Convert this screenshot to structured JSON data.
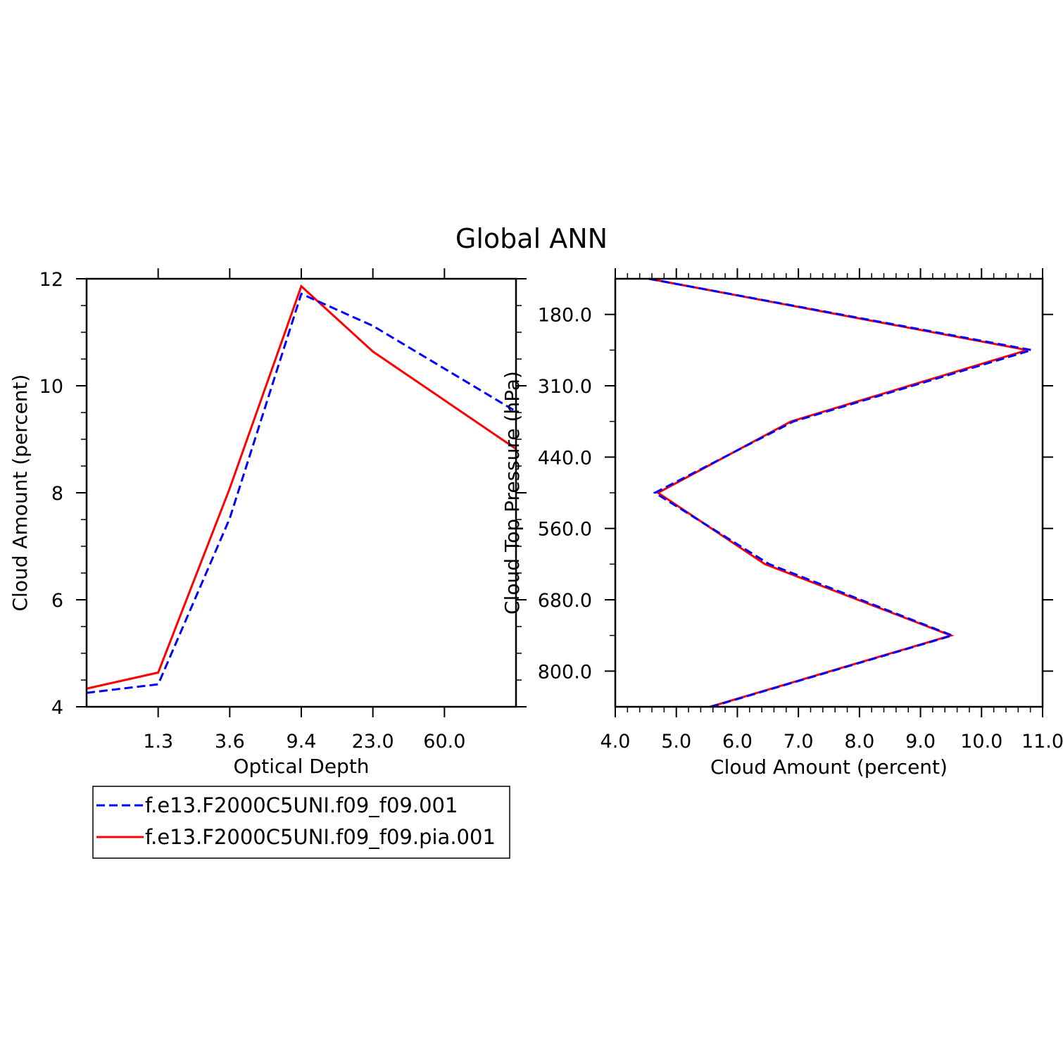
{
  "title": "Global ANN",
  "colors": {
    "series_1": "#0000ff",
    "series_2": "#ff0000",
    "axis": "#000000"
  },
  "legend": {
    "items": [
      {
        "label": "f.e13.F2000C5UNI.f09_f09.001",
        "color": "#0000ff",
        "style": "dashed"
      },
      {
        "label": "f.e13.F2000C5UNI.f09_f09.pia.001",
        "color": "#ff0000",
        "style": "solid"
      }
    ]
  },
  "chart_data": [
    {
      "type": "line",
      "xlabel": "Optical Depth",
      "ylabel": "Cloud Amount (percent)",
      "x_ticks": [
        "1.3",
        "3.6",
        "9.4",
        "23.0",
        "60.0"
      ],
      "x_bins": 6,
      "y_ticks": [
        "4",
        "6",
        "8",
        "10",
        "12"
      ],
      "ylim": [
        4,
        12
      ],
      "grid": false,
      "series": [
        {
          "name": "f.e13.F2000C5UNI.f09_f09.001",
          "values": [
            4.26,
            4.42,
            7.52,
            11.72,
            11.12,
            9.52
          ]
        },
        {
          "name": "f.e13.F2000C5UNI.f09_f09.pia.001",
          "values": [
            4.34,
            4.64,
            8.08,
            11.86,
            10.64,
            8.82
          ]
        }
      ]
    },
    {
      "type": "line",
      "orientation": "vertical-profile",
      "xlabel": "Cloud Amount (percent)",
      "ylabel": "Cloud Top Pressure (hPa)",
      "x_ticks": [
        "4.0",
        "5.0",
        "6.0",
        "7.0",
        "8.0",
        "9.0",
        "10.0",
        "11.0"
      ],
      "xlim": [
        4.0,
        11.0
      ],
      "y_ticks": [
        "180.0",
        "310.0",
        "440.0",
        "560.0",
        "680.0",
        "800.0"
      ],
      "y_bins": 6,
      "grid": false,
      "series": [
        {
          "name": "f.e13.F2000C5UNI.f09_f09.001",
          "values": [
            4.55,
            10.82,
            6.92,
            4.65,
            6.52,
            9.52,
            5.57
          ]
        },
        {
          "name": "f.e13.F2000C5UNI.f09_f09.pia.001",
          "values": [
            4.55,
            10.75,
            6.88,
            4.7,
            6.45,
            9.5,
            5.55
          ]
        }
      ]
    }
  ]
}
